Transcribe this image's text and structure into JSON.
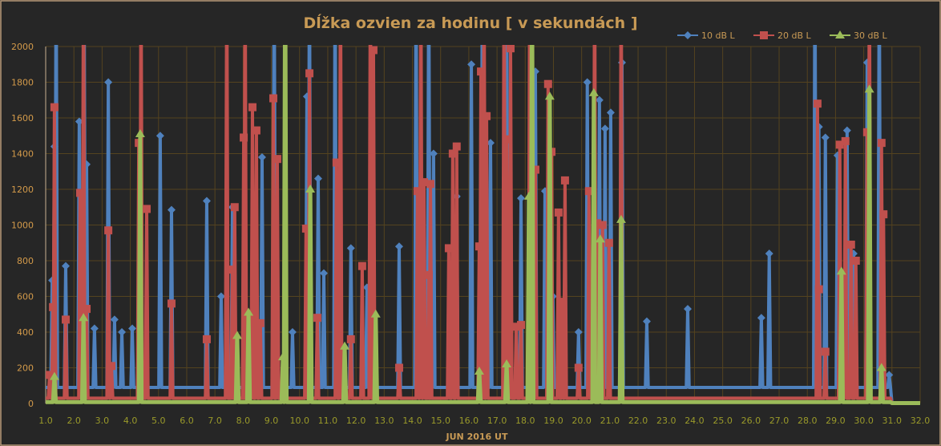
{
  "chart_data": {
    "type": "line",
    "title": "Dĺžka ozvien za hodinu [ v sekundách ]",
    "xlabel": "JUN  2016  UT",
    "ylabel": "",
    "xlim": [
      1.0,
      32.0
    ],
    "ylim": [
      0,
      2000
    ],
    "grid": true,
    "legend_position": "top-right",
    "x_ticks": [
      "1.0",
      "2.0",
      "3.0",
      "4.0",
      "5.0",
      "6.0",
      "7.0",
      "8.0",
      "9.0",
      "10.0",
      "11.0",
      "12.0",
      "13.0",
      "14.0",
      "15.0",
      "16.0",
      "17.0",
      "18.0",
      "19.0",
      "20.0",
      "21.0",
      "22.0",
      "23.0",
      "24.0",
      "25.0",
      "26.0",
      "27.0",
      "28.0",
      "29.0",
      "30.0",
      "31.0",
      "32.0"
    ],
    "y_ticks": [
      "0",
      "200",
      "400",
      "600",
      "800",
      "1000",
      "1200",
      "1400",
      "1600",
      "1800",
      "2000"
    ],
    "series": [
      {
        "name": "10 dB L",
        "color": "#4f81bd",
        "marker": "diamond",
        "baseline": 90,
        "points": [
          [
            1.23,
            690
          ],
          [
            1.31,
            1440
          ],
          [
            1.37,
            2500
          ],
          [
            1.71,
            770
          ],
          [
            2.19,
            1580
          ],
          [
            2.36,
            2500
          ],
          [
            2.45,
            1340
          ],
          [
            2.73,
            420
          ],
          [
            3.22,
            1800
          ],
          [
            3.44,
            470
          ],
          [
            3.7,
            400
          ],
          [
            4.07,
            420
          ],
          [
            5.06,
            1500
          ],
          [
            5.46,
            1085
          ],
          [
            6.71,
            1135
          ],
          [
            7.22,
            600
          ],
          [
            7.62,
            1100
          ],
          [
            8.67,
            1380
          ],
          [
            9.1,
            2500
          ],
          [
            9.75,
            400
          ],
          [
            10.26,
            1720
          ],
          [
            10.35,
            2500
          ],
          [
            10.66,
            1260
          ],
          [
            10.86,
            730
          ],
          [
            11.26,
            2500
          ],
          [
            11.82,
            870
          ],
          [
            12.39,
            650
          ],
          [
            13.53,
            880
          ],
          [
            14.13,
            2500
          ],
          [
            14.58,
            2500
          ],
          [
            14.75,
            1400
          ],
          [
            15.57,
            1160
          ],
          [
            16.09,
            1900
          ],
          [
            16.48,
            2500
          ],
          [
            16.77,
            1460
          ],
          [
            17.34,
            2500
          ],
          [
            17.85,
            1150
          ],
          [
            18.36,
            1860
          ],
          [
            18.7,
            1190
          ],
          [
            18.98,
            600
          ],
          [
            19.89,
            400
          ],
          [
            20.2,
            1800
          ],
          [
            20.63,
            1700
          ],
          [
            20.83,
            1540
          ],
          [
            21.03,
            1630
          ],
          [
            21.43,
            1910
          ],
          [
            22.31,
            460
          ],
          [
            23.76,
            530
          ],
          [
            26.37,
            480
          ],
          [
            26.65,
            840
          ],
          [
            28.27,
            2500
          ],
          [
            28.41,
            1550
          ],
          [
            28.64,
            1490
          ],
          [
            29.07,
            1390
          ],
          [
            29.41,
            1530
          ],
          [
            29.64,
            840
          ],
          [
            30.12,
            1910
          ],
          [
            30.55,
            2500
          ],
          [
            30.9,
            160
          ]
        ]
      },
      {
        "name": "20 dB L",
        "color": "#c0504d",
        "marker": "square",
        "baseline": 30,
        "points": [
          [
            1.14,
            160
          ],
          [
            1.26,
            540
          ],
          [
            1.31,
            1660
          ],
          [
            1.71,
            470
          ],
          [
            2.22,
            1180
          ],
          [
            2.34,
            2500
          ],
          [
            2.45,
            530
          ],
          [
            3.22,
            970
          ],
          [
            3.33,
            210
          ],
          [
            4.3,
            1460
          ],
          [
            4.38,
            2500
          ],
          [
            4.58,
            1090
          ],
          [
            5.46,
            560
          ],
          [
            6.71,
            360
          ],
          [
            7.42,
            2500
          ],
          [
            7.62,
            750
          ],
          [
            7.7,
            1100
          ],
          [
            8.02,
            1490
          ],
          [
            8.07,
            2500
          ],
          [
            8.33,
            1660
          ],
          [
            8.47,
            1530
          ],
          [
            8.61,
            450
          ],
          [
            9.07,
            1710
          ],
          [
            9.21,
            1370
          ],
          [
            10.23,
            980
          ],
          [
            10.35,
            1850
          ],
          [
            10.63,
            480
          ],
          [
            11.31,
            1350
          ],
          [
            11.45,
            2500
          ],
          [
            11.82,
            360
          ],
          [
            12.22,
            770
          ],
          [
            12.51,
            2500
          ],
          [
            12.62,
            1980
          ],
          [
            13.53,
            200
          ],
          [
            14.18,
            1190
          ],
          [
            14.3,
            2500
          ],
          [
            14.41,
            1240
          ],
          [
            14.58,
            720
          ],
          [
            14.64,
            1230
          ],
          [
            15.29,
            870
          ],
          [
            15.43,
            1400
          ],
          [
            15.57,
            1440
          ],
          [
            16.37,
            880
          ],
          [
            16.43,
            1860
          ],
          [
            16.54,
            2500
          ],
          [
            16.63,
            1610
          ],
          [
            17.25,
            2500
          ],
          [
            17.34,
            1480
          ],
          [
            17.48,
            1990
          ],
          [
            17.68,
            430
          ],
          [
            17.85,
            440
          ],
          [
            18.16,
            2500
          ],
          [
            18.36,
            1310
          ],
          [
            18.81,
            1790
          ],
          [
            18.93,
            1410
          ],
          [
            19.18,
            1070
          ],
          [
            19.32,
            570
          ],
          [
            19.41,
            1250
          ],
          [
            19.89,
            200
          ],
          [
            20.26,
            1190
          ],
          [
            20.46,
            2500
          ],
          [
            20.55,
            1010
          ],
          [
            20.74,
            1000
          ],
          [
            20.97,
            900
          ],
          [
            21.4,
            2500
          ],
          [
            28.36,
            1680
          ],
          [
            28.41,
            640
          ],
          [
            28.64,
            290
          ],
          [
            29.15,
            1450
          ],
          [
            29.35,
            1470
          ],
          [
            29.55,
            890
          ],
          [
            29.72,
            800
          ],
          [
            30.12,
            1520
          ],
          [
            30.2,
            2500
          ],
          [
            30.63,
            1460
          ],
          [
            30.7,
            1060
          ]
        ]
      },
      {
        "name": "30 dB L",
        "color": "#9bbb59",
        "marker": "triangle",
        "baseline": 8,
        "points": [
          [
            1.31,
            150
          ],
          [
            2.34,
            480
          ],
          [
            4.35,
            1510
          ],
          [
            7.79,
            380
          ],
          [
            8.19,
            510
          ],
          [
            9.41,
            260
          ],
          [
            9.49,
            2500
          ],
          [
            10.38,
            1200
          ],
          [
            11.6,
            320
          ],
          [
            12.7,
            500
          ],
          [
            16.37,
            180
          ],
          [
            17.34,
            220
          ],
          [
            18.13,
            1160
          ],
          [
            18.24,
            2500
          ],
          [
            18.87,
            1720
          ],
          [
            20.43,
            1740
          ],
          [
            20.66,
            920
          ],
          [
            21.4,
            1030
          ],
          [
            29.21,
            740
          ],
          [
            30.2,
            1760
          ],
          [
            30.63,
            200
          ]
        ]
      }
    ]
  }
}
